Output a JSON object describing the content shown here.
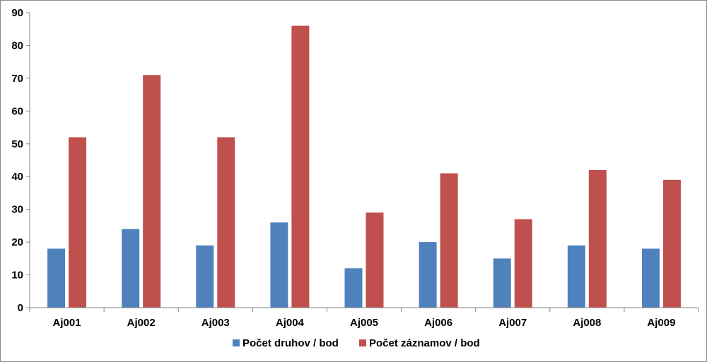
{
  "chart_data": {
    "type": "bar",
    "categories": [
      "Aj001",
      "Aj002",
      "Aj003",
      "Aj004",
      "Aj005",
      "Aj006",
      "Aj007",
      "Aj008",
      "Aj009"
    ],
    "series": [
      {
        "name": "Počet druhov / bod",
        "color": "#4f81bd",
        "values": [
          18,
          24,
          19,
          26,
          12,
          20,
          15,
          19,
          18
        ]
      },
      {
        "name": "Počet záznamov / bod",
        "color": "#c0504d",
        "values": [
          52,
          71,
          52,
          86,
          29,
          41,
          27,
          42,
          39
        ]
      }
    ],
    "title": "",
    "xlabel": "",
    "ylabel": "",
    "ylim": [
      0,
      90
    ],
    "yticks": [
      0,
      10,
      20,
      30,
      40,
      50,
      60,
      70,
      80,
      90
    ],
    "grid": false,
    "legend_position": "bottom"
  }
}
